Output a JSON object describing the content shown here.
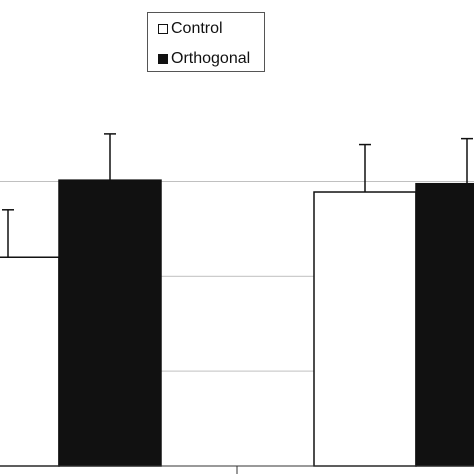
{
  "chart_data": {
    "type": "bar",
    "categories": [
      "",
      ""
    ],
    "series": [
      {
        "name": "Control",
        "values": [
          1.76,
          2.31
        ],
        "errors": [
          0.4,
          0.4
        ],
        "color": "#ffffff"
      },
      {
        "name": "Orthogonal",
        "values": [
          2.41,
          2.38
        ],
        "errors": [
          0.39,
          0.38
        ],
        "color": "#111111"
      }
    ],
    "ylim": [
      0,
      3.6
    ],
    "title": "",
    "xlabel": "",
    "ylabel": "",
    "legend_position": "top",
    "grid": true
  }
}
